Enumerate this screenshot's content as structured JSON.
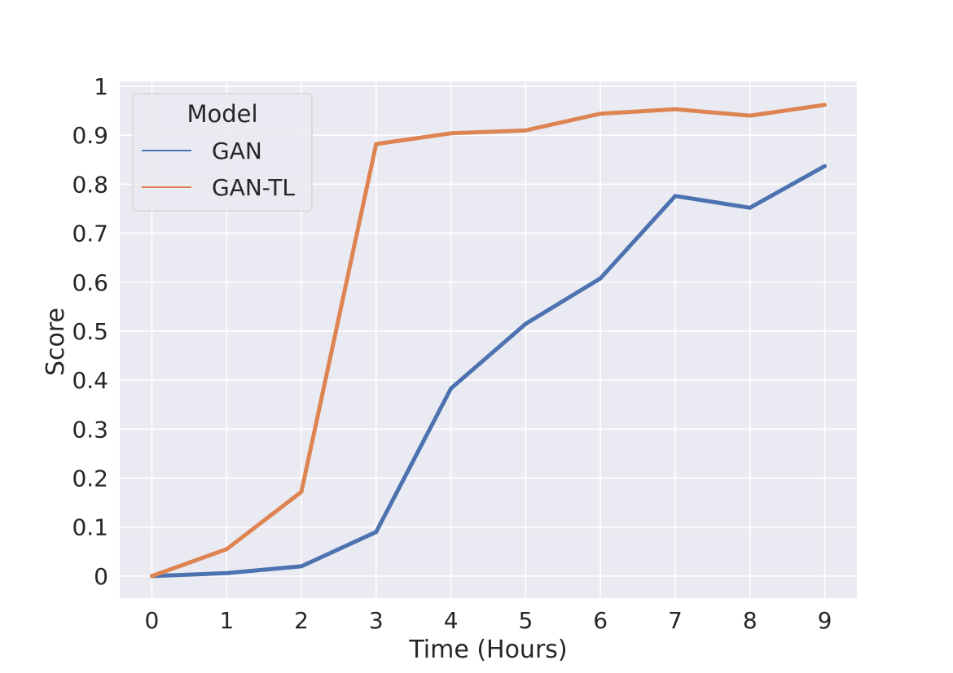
{
  "chart_data": {
    "type": "line",
    "title": "",
    "xlabel": "Time (Hours)",
    "ylabel": "Score",
    "x": [
      0,
      1,
      2,
      3,
      4,
      5,
      6,
      7,
      8,
      9
    ],
    "xticks": [
      "0",
      "1",
      "2",
      "3",
      "4",
      "5",
      "6",
      "7",
      "8",
      "9"
    ],
    "yticks": [
      "0",
      "0.1",
      "0.2",
      "0.3",
      "0.4",
      "0.5",
      "0.6",
      "0.7",
      "0.8",
      "0.9",
      "1"
    ],
    "xlim": [
      -0.43,
      9.43
    ],
    "ylim": [
      -0.045,
      1.01
    ],
    "grid": true,
    "legend": {
      "title": "Model",
      "placement": "top-left"
    },
    "series": [
      {
        "name": "GAN",
        "color": "#4c72b0",
        "values": [
          0.0,
          0.006,
          0.02,
          0.09,
          0.383,
          0.515,
          0.608,
          0.776,
          0.752,
          0.837
        ]
      },
      {
        "name": "GAN-TL",
        "color": "#dd8452",
        "values": [
          0.0,
          0.055,
          0.172,
          0.882,
          0.904,
          0.91,
          0.944,
          0.953,
          0.94,
          0.962
        ]
      }
    ]
  }
}
